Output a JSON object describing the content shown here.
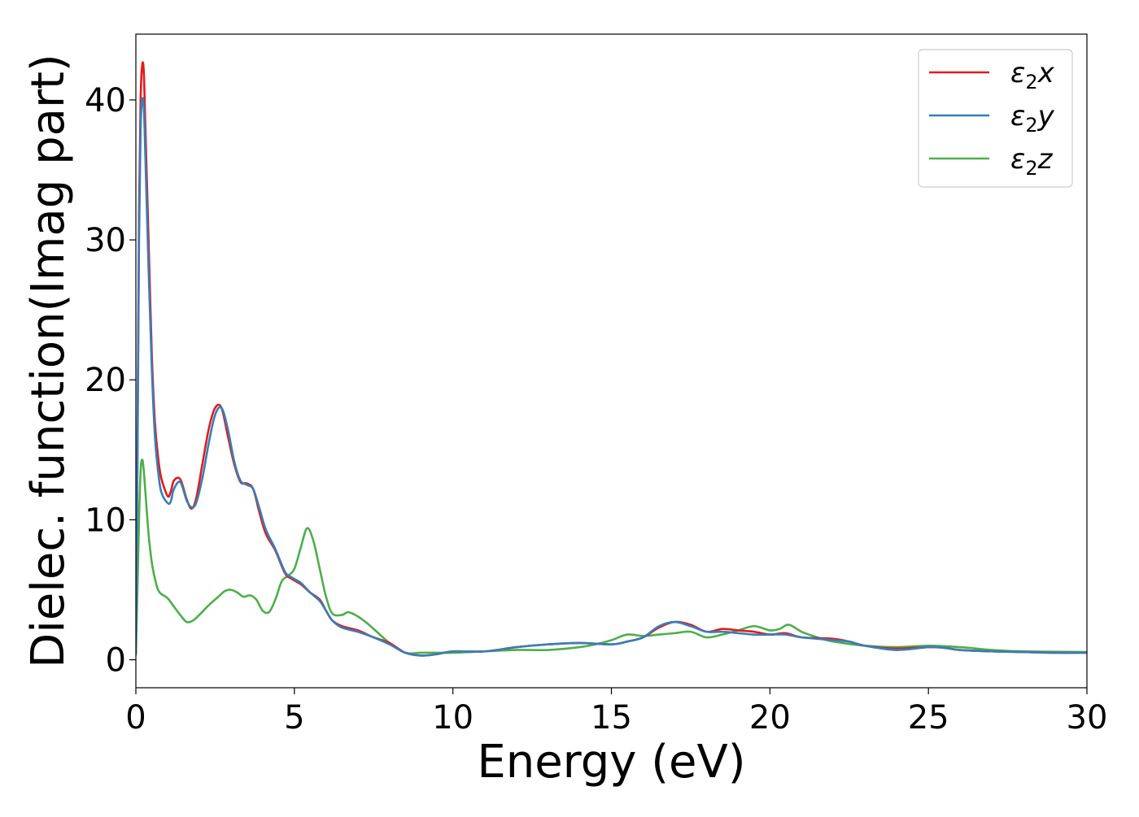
{
  "chart_data": {
    "type": "line",
    "title": "",
    "xlabel": "Energy (eV)",
    "ylabel": "Dielec. function(Imag part)",
    "xlim": [
      0,
      30
    ],
    "ylim": [
      -2,
      44.7
    ],
    "xticks": [
      0,
      5,
      10,
      15,
      20,
      25,
      30
    ],
    "yticks": [
      0,
      10,
      20,
      30,
      40
    ],
    "grid": false,
    "legend_position": "top-right",
    "series": [
      {
        "name": "ε2x",
        "legend_main": "ε",
        "legend_sub": "2",
        "legend_suffix": "x",
        "color": "#e41a1c",
        "x": [
          0,
          0.05,
          0.1,
          0.15,
          0.2,
          0.25,
          0.3,
          0.4,
          0.5,
          0.6,
          0.7,
          0.8,
          1.0,
          1.1,
          1.2,
          1.4,
          1.6,
          1.75,
          1.9,
          2.1,
          2.3,
          2.5,
          2.7,
          2.9,
          3.1,
          3.3,
          3.5,
          3.7,
          3.9,
          4.1,
          4.4,
          4.7,
          4.9,
          5.2,
          5.5,
          5.8,
          6.0,
          6.2,
          6.5,
          7.0,
          7.5,
          8.0,
          8.5,
          9.0,
          9.5,
          10.0,
          11.0,
          12.0,
          13.0,
          14.0,
          15.0,
          15.5,
          16.0,
          16.5,
          17.0,
          17.5,
          18.0,
          18.5,
          19.0,
          19.5,
          20.0,
          20.5,
          21.0,
          22.0,
          22.5,
          23.0,
          24.0,
          25.0,
          25.5,
          26.0,
          27.0,
          28.0,
          29.0,
          30.0
        ],
        "y": [
          0.5,
          15,
          32,
          40,
          42.5,
          42,
          38,
          30,
          22,
          17,
          14.5,
          13,
          11.7,
          12,
          12.8,
          12.9,
          11.5,
          10.8,
          11.5,
          14,
          16.5,
          18,
          18,
          16,
          14,
          12.7,
          12.6,
          12.2,
          10.5,
          9,
          7.8,
          6.2,
          5.8,
          5.4,
          4.8,
          4.3,
          3.5,
          2.8,
          2.4,
          2.1,
          1.6,
          1.2,
          0.5,
          0.3,
          0.4,
          0.6,
          0.6,
          0.9,
          1.1,
          1.2,
          1.1,
          1.3,
          1.6,
          2.3,
          2.7,
          2.5,
          2.0,
          2.2,
          2.1,
          2.0,
          1.8,
          1.9,
          1.6,
          1.5,
          1.3,
          1.0,
          0.8,
          0.9,
          0.85,
          0.7,
          0.6,
          0.55,
          0.5,
          0.5
        ]
      },
      {
        "name": "ε2y",
        "legend_main": "ε",
        "legend_sub": "2",
        "legend_suffix": "y",
        "color": "#377eb8",
        "x": [
          0,
          0.05,
          0.1,
          0.15,
          0.2,
          0.25,
          0.3,
          0.4,
          0.5,
          0.6,
          0.7,
          0.8,
          1.0,
          1.1,
          1.2,
          1.4,
          1.6,
          1.75,
          1.9,
          2.1,
          2.3,
          2.5,
          2.7,
          2.9,
          3.1,
          3.3,
          3.5,
          3.7,
          3.9,
          4.1,
          4.4,
          4.7,
          4.9,
          5.2,
          5.5,
          5.8,
          6.0,
          6.2,
          6.5,
          7.0,
          7.5,
          8.0,
          8.5,
          9.0,
          9.5,
          10.0,
          11.0,
          12.0,
          13.0,
          14.0,
          15.0,
          15.5,
          16.0,
          16.5,
          17.0,
          17.5,
          18.0,
          18.5,
          19.0,
          19.5,
          20.0,
          20.5,
          21.0,
          22.0,
          22.5,
          23.0,
          24.0,
          25.0,
          25.5,
          26.0,
          27.0,
          28.0,
          29.0,
          30.0
        ],
        "y": [
          0.5,
          14,
          30,
          38,
          40,
          39.5,
          36,
          28,
          21,
          16,
          13.5,
          12,
          11.2,
          11.3,
          12.2,
          12.7,
          11.4,
          10.9,
          11.2,
          13,
          15.5,
          17.5,
          18,
          16.5,
          14.2,
          12.8,
          12.5,
          12.2,
          10.8,
          9.3,
          7.9,
          6.3,
          5.9,
          5.5,
          4.8,
          4.2,
          3.5,
          2.8,
          2.3,
          2.0,
          1.6,
          1.1,
          0.5,
          0.3,
          0.4,
          0.6,
          0.6,
          0.9,
          1.1,
          1.2,
          1.1,
          1.3,
          1.6,
          2.4,
          2.7,
          2.4,
          2.0,
          2.0,
          1.9,
          1.8,
          1.8,
          1.8,
          1.6,
          1.4,
          1.3,
          1.0,
          0.7,
          0.9,
          0.85,
          0.7,
          0.6,
          0.55,
          0.5,
          0.5
        ]
      },
      {
        "name": "ε2z",
        "legend_main": "ε",
        "legend_sub": "2",
        "legend_suffix": "z",
        "color": "#4daf4a",
        "x": [
          0,
          0.05,
          0.1,
          0.15,
          0.2,
          0.25,
          0.3,
          0.4,
          0.5,
          0.6,
          0.7,
          0.8,
          1.0,
          1.2,
          1.4,
          1.6,
          1.8,
          2.0,
          2.3,
          2.6,
          2.8,
          3.0,
          3.2,
          3.4,
          3.6,
          3.8,
          4.0,
          4.2,
          4.4,
          4.6,
          4.8,
          5.0,
          5.2,
          5.4,
          5.6,
          5.8,
          6.0,
          6.2,
          6.5,
          6.7,
          7.0,
          7.3,
          7.6,
          8.0,
          8.5,
          9.0,
          9.5,
          10.0,
          11.0,
          12.0,
          13.0,
          14.0,
          14.5,
          15.0,
          15.5,
          16.0,
          16.5,
          17.0,
          17.5,
          18.0,
          18.5,
          19.0,
          19.5,
          20.0,
          20.3,
          20.6,
          21.0,
          21.5,
          22.0,
          23.0,
          24.0,
          25.0,
          26.0,
          27.0,
          28.0,
          30.0
        ],
        "y": [
          0.3,
          5,
          10,
          13.5,
          14.3,
          13.5,
          12,
          9,
          7,
          5.8,
          5.0,
          4.7,
          4.4,
          3.8,
          3.2,
          2.7,
          2.8,
          3.2,
          3.9,
          4.5,
          4.9,
          5.0,
          4.8,
          4.5,
          4.6,
          4.3,
          3.5,
          3.4,
          4.3,
          5.6,
          6.0,
          6.5,
          8.0,
          9.4,
          8.5,
          6.5,
          4.5,
          3.3,
          3.2,
          3.4,
          3.1,
          2.6,
          2.0,
          1.2,
          0.5,
          0.5,
          0.5,
          0.5,
          0.6,
          0.7,
          0.7,
          0.9,
          1.1,
          1.4,
          1.8,
          1.7,
          1.8,
          1.9,
          2.0,
          1.6,
          1.8,
          2.1,
          2.4,
          2.1,
          2.2,
          2.5,
          2.0,
          1.6,
          1.3,
          1.0,
          0.9,
          1.0,
          0.9,
          0.7,
          0.6,
          0.55
        ]
      }
    ]
  }
}
